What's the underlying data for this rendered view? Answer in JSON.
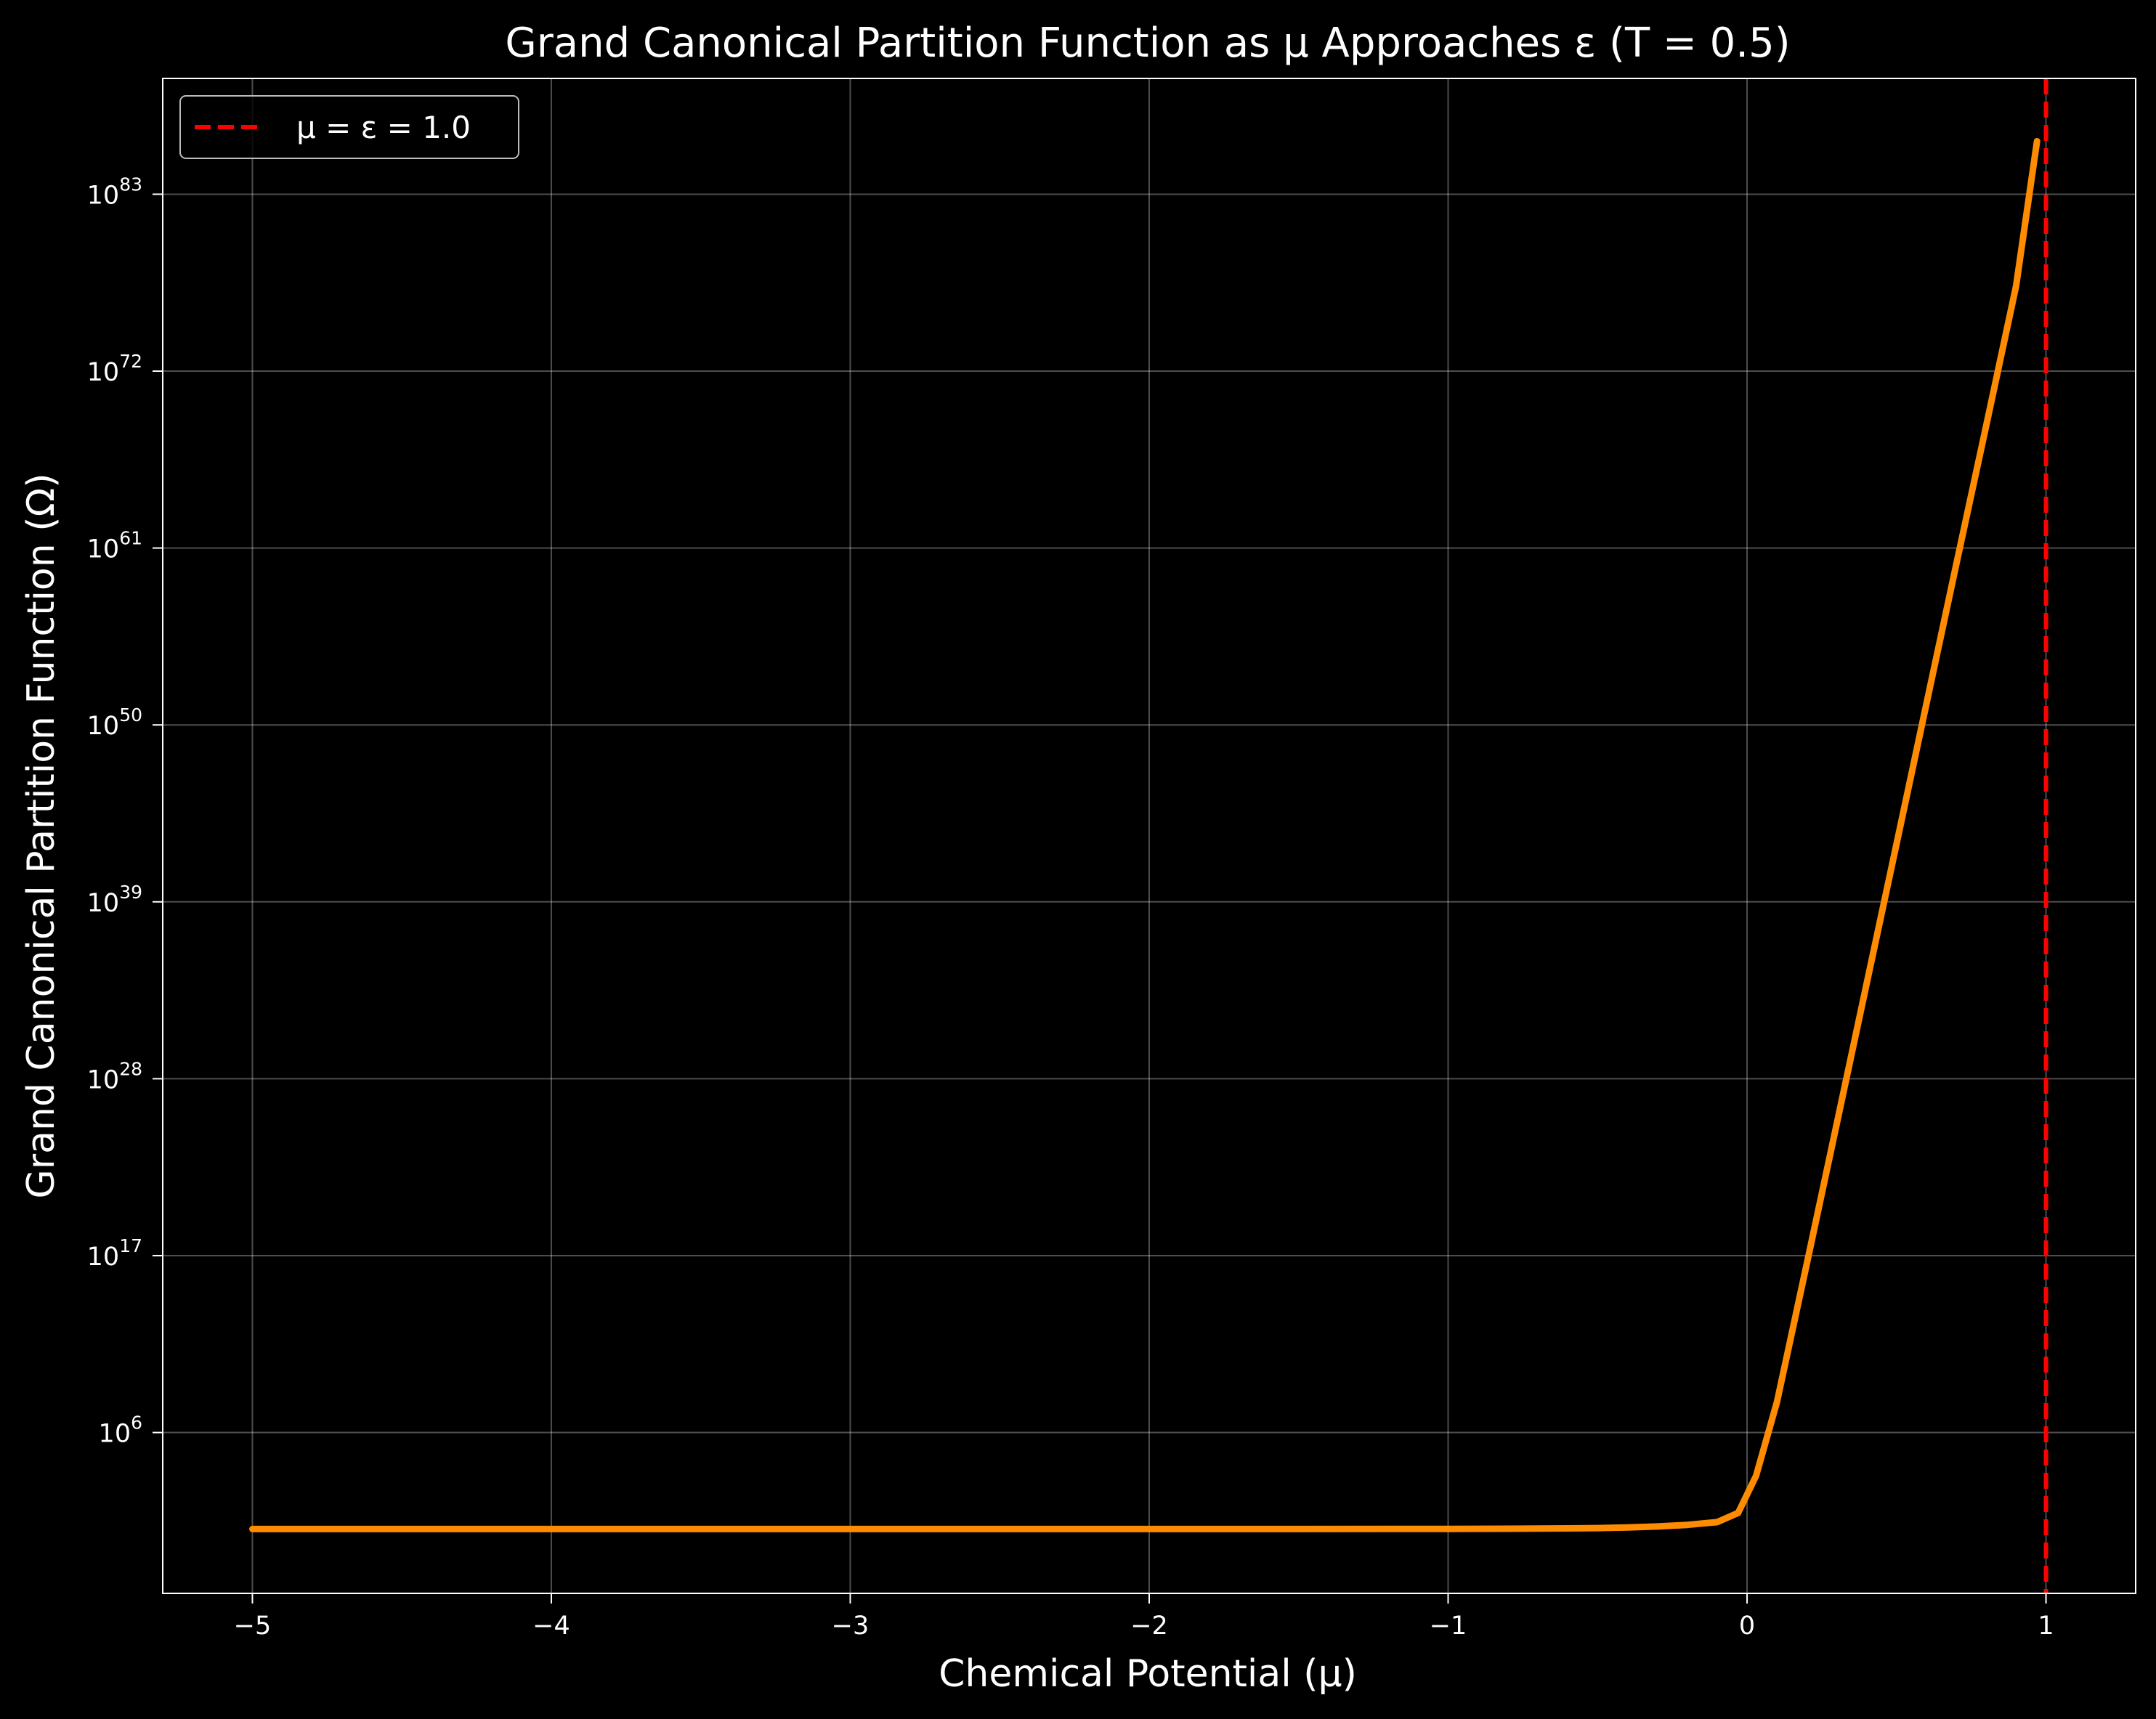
{
  "chart_data": {
    "type": "line",
    "title": "Grand Canonical Partition Function as μ Approaches ε (T = 0.5)",
    "xlabel": "Chemical Potential (μ)",
    "ylabel": "Grand Canonical Partition Function (Ω)",
    "xlim": [
      -5.3,
      1.3
    ],
    "ylim_log10": [
      -4.0,
      90.2
    ],
    "yscale": "log",
    "grid": true,
    "legend_position": "upper-left",
    "x_ticks": [
      {
        "value": -5,
        "label": "−5"
      },
      {
        "value": -4,
        "label": "−4"
      },
      {
        "value": -3,
        "label": "−3"
      },
      {
        "value": -2,
        "label": "−2"
      },
      {
        "value": -1,
        "label": "−1"
      },
      {
        "value": 0,
        "label": "0"
      },
      {
        "value": 1,
        "label": "1"
      }
    ],
    "y_ticks": [
      {
        "base": "10",
        "exp": "6",
        "log10": 6
      },
      {
        "base": "10",
        "exp": "17",
        "log10": 17
      },
      {
        "base": "10",
        "exp": "28",
        "log10": 28
      },
      {
        "base": "10",
        "exp": "39",
        "log10": 39
      },
      {
        "base": "10",
        "exp": "50",
        "log10": 50
      },
      {
        "base": "10",
        "exp": "61",
        "log10": 61
      },
      {
        "base": "10",
        "exp": "72",
        "log10": 72
      },
      {
        "base": "10",
        "exp": "83",
        "log10": 83
      }
    ],
    "series": [
      {
        "color": "#ff8c00",
        "points_log10": [
          [
            -5.0,
            0.0
          ],
          [
            -4.0,
            0.0
          ],
          [
            -3.0,
            0.0
          ],
          [
            -2.0,
            0.0
          ],
          [
            -1.5,
            0.0
          ],
          [
            -1.0,
            0.01
          ],
          [
            -0.8,
            0.02
          ],
          [
            -0.6,
            0.04
          ],
          [
            -0.5,
            0.06
          ],
          [
            -0.4,
            0.1
          ],
          [
            -0.3,
            0.16
          ],
          [
            -0.2,
            0.26
          ],
          [
            -0.1,
            0.43
          ],
          [
            -0.03,
            1.0
          ],
          [
            0.03,
            3.3
          ],
          [
            0.1,
            7.9
          ],
          [
            0.2,
            16.5
          ],
          [
            0.3,
            25.2
          ],
          [
            0.4,
            33.9
          ],
          [
            0.5,
            42.6
          ],
          [
            0.6,
            51.3
          ],
          [
            0.7,
            60.0
          ],
          [
            0.8,
            68.6
          ],
          [
            0.9,
            77.3
          ],
          [
            0.97,
            86.3
          ]
        ]
      }
    ],
    "reference_lines": [
      {
        "type": "vertical",
        "x": 1.0,
        "color": "#ff0000",
        "style": "dashed",
        "label": "μ = ε = 1.0"
      }
    ]
  }
}
